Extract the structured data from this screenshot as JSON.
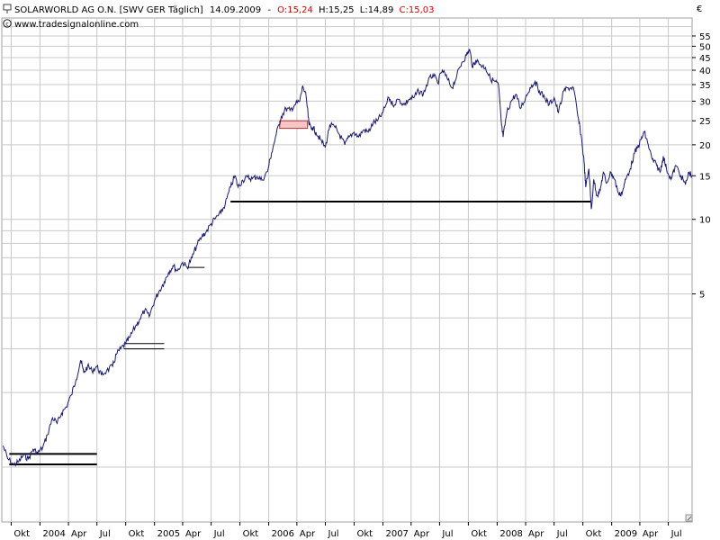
{
  "header": {
    "instrument": "SOLARWORLD AG O.N. [SWV GER  Täglich]",
    "date": "14.09.2009",
    "open_label": "O:15,24",
    "high_label": "H:15,25",
    "low_label": "L:14,89",
    "close_label": "C:15,03",
    "source": "www.tradesignalonline.com",
    "currency": "€"
  },
  "colors": {
    "price_line": "#1a1a6e",
    "grid": "#c8c8c8",
    "accent_red": "#d00000",
    "annotation": "#000000",
    "box_fill": "#f5c6c6",
    "box_stroke": "#b03030"
  },
  "chart_data": {
    "type": "line",
    "title": "SOLARWORLD AG O.N. [SWV GER  Täglich]",
    "xlabel": "",
    "ylabel": "€",
    "y_scale": "log",
    "grid": true,
    "ylim": [
      0.6,
      65
    ],
    "y_tick_labels": [
      "55",
      "50",
      "45",
      "40",
      "35",
      "30",
      "25",
      "20",
      "15",
      "10",
      "5"
    ],
    "y_ticks": [
      55,
      50,
      45,
      40,
      35,
      30,
      25,
      20,
      15,
      10,
      5
    ],
    "x_range": [
      "2003-09-01",
      "2009-09-15"
    ],
    "x_ticks": [
      {
        "label": "Okt",
        "date": "2003-10-01"
      },
      {
        "label": "2004",
        "date": "2004-01-01"
      },
      {
        "label": "Apr",
        "date": "2004-04-01"
      },
      {
        "label": "Jul",
        "date": "2004-07-01"
      },
      {
        "label": "Okt",
        "date": "2004-10-01"
      },
      {
        "label": "2005",
        "date": "2005-01-01"
      },
      {
        "label": "Apr",
        "date": "2005-04-01"
      },
      {
        "label": "Jul",
        "date": "2005-07-01"
      },
      {
        "label": "Okt",
        "date": "2005-10-01"
      },
      {
        "label": "2006",
        "date": "2006-01-01"
      },
      {
        "label": "Apr",
        "date": "2006-04-01"
      },
      {
        "label": "Jul",
        "date": "2006-07-01"
      },
      {
        "label": "Okt",
        "date": "2006-10-01"
      },
      {
        "label": "2007",
        "date": "2007-01-01"
      },
      {
        "label": "Apr",
        "date": "2007-04-01"
      },
      {
        "label": "Jul",
        "date": "2007-07-01"
      },
      {
        "label": "Okt",
        "date": "2007-10-01"
      },
      {
        "label": "2008",
        "date": "2008-01-01"
      },
      {
        "label": "Apr",
        "date": "2008-04-01"
      },
      {
        "label": "Jul",
        "date": "2008-07-01"
      },
      {
        "label": "Okt",
        "date": "2008-10-01"
      },
      {
        "label": "2009",
        "date": "2009-01-01"
      },
      {
        "label": "Apr",
        "date": "2009-04-01"
      },
      {
        "label": "Jul",
        "date": "2009-07-01"
      }
    ],
    "series": [
      {
        "points": [
          [
            "2003-09-05",
            1.22
          ],
          [
            "2003-09-20",
            1.08
          ],
          [
            "2003-10-10",
            1.02
          ],
          [
            "2003-10-25",
            1.05
          ],
          [
            "2003-11-10",
            1.12
          ],
          [
            "2003-11-25",
            1.08
          ],
          [
            "2003-12-10",
            1.18
          ],
          [
            "2003-12-25",
            1.14
          ],
          [
            "2004-01-10",
            1.2
          ],
          [
            "2004-01-25",
            1.35
          ],
          [
            "2004-02-10",
            1.58
          ],
          [
            "2004-02-25",
            1.5
          ],
          [
            "2004-03-10",
            1.65
          ],
          [
            "2004-03-25",
            1.75
          ],
          [
            "2004-04-10",
            1.95
          ],
          [
            "2004-04-25",
            2.25
          ],
          [
            "2004-05-10",
            2.7
          ],
          [
            "2004-05-20",
            2.4
          ],
          [
            "2004-06-01",
            2.55
          ],
          [
            "2004-06-15",
            2.45
          ],
          [
            "2004-07-01",
            2.55
          ],
          [
            "2004-07-15",
            2.35
          ],
          [
            "2004-08-01",
            2.45
          ],
          [
            "2004-08-20",
            2.55
          ],
          [
            "2004-09-01",
            2.85
          ],
          [
            "2004-09-15",
            3.0
          ],
          [
            "2004-10-01",
            3.15
          ],
          [
            "2004-10-15",
            3.35
          ],
          [
            "2004-11-01",
            3.7
          ],
          [
            "2004-11-15",
            3.95
          ],
          [
            "2004-12-01",
            4.3
          ],
          [
            "2004-12-15",
            4.05
          ],
          [
            "2005-01-01",
            4.7
          ],
          [
            "2005-01-15",
            5.1
          ],
          [
            "2005-02-01",
            5.6
          ],
          [
            "2005-02-15",
            6.1
          ],
          [
            "2005-03-01",
            6.5
          ],
          [
            "2005-03-15",
            6.2
          ],
          [
            "2005-04-01",
            6.7
          ],
          [
            "2005-04-15",
            6.4
          ],
          [
            "2005-05-01",
            7.0
          ],
          [
            "2005-05-15",
            7.8
          ],
          [
            "2005-06-01",
            8.5
          ],
          [
            "2005-06-15",
            8.9
          ],
          [
            "2005-07-01",
            9.6
          ],
          [
            "2005-07-15",
            10.1
          ],
          [
            "2005-08-01",
            10.6
          ],
          [
            "2005-08-15",
            11.5
          ],
          [
            "2005-09-01",
            13.5
          ],
          [
            "2005-09-15",
            15.0
          ],
          [
            "2005-09-25",
            13.5
          ],
          [
            "2005-10-10",
            14.4
          ],
          [
            "2005-10-25",
            14.8
          ],
          [
            "2005-11-10",
            14.6
          ],
          [
            "2005-11-25",
            14.9
          ],
          [
            "2005-12-10",
            14.4
          ],
          [
            "2005-12-28",
            15.6
          ],
          [
            "2006-01-10",
            18.5
          ],
          [
            "2006-01-25",
            22.0
          ],
          [
            "2006-02-10",
            26.0
          ],
          [
            "2006-02-25",
            28.0
          ],
          [
            "2006-03-10",
            27.5
          ],
          [
            "2006-03-25",
            29.0
          ],
          [
            "2006-04-10",
            30.0
          ],
          [
            "2006-04-20",
            34.5
          ],
          [
            "2006-05-01",
            31.0
          ],
          [
            "2006-05-10",
            24.0
          ],
          [
            "2006-05-20",
            23.5
          ],
          [
            "2006-06-01",
            22.5
          ],
          [
            "2006-06-15",
            21.0
          ],
          [
            "2006-07-01",
            19.5
          ],
          [
            "2006-07-15",
            24.0
          ],
          [
            "2006-08-01",
            23.5
          ],
          [
            "2006-08-15",
            22.0
          ],
          [
            "2006-09-01",
            20.0
          ],
          [
            "2006-09-15",
            21.5
          ],
          [
            "2006-10-01",
            22.5
          ],
          [
            "2006-10-15",
            21.5
          ],
          [
            "2006-11-01",
            23.0
          ],
          [
            "2006-11-15",
            22.5
          ],
          [
            "2006-12-01",
            24.5
          ],
          [
            "2006-12-15",
            25.0
          ],
          [
            "2007-01-01",
            27.0
          ],
          [
            "2007-01-20",
            31.0
          ],
          [
            "2007-02-01",
            29.0
          ],
          [
            "2007-02-20",
            30.5
          ],
          [
            "2007-03-10",
            29.0
          ],
          [
            "2007-03-25",
            30.5
          ],
          [
            "2007-04-10",
            31.0
          ],
          [
            "2007-04-25",
            33.0
          ],
          [
            "2007-05-10",
            32.0
          ],
          [
            "2007-05-25",
            36.0
          ],
          [
            "2007-06-10",
            38.5
          ],
          [
            "2007-06-25",
            35.5
          ],
          [
            "2007-07-10",
            40.0
          ],
          [
            "2007-07-25",
            37.0
          ],
          [
            "2007-08-10",
            34.0
          ],
          [
            "2007-08-25",
            38.0
          ],
          [
            "2007-09-10",
            43.0
          ],
          [
            "2007-09-25",
            46.0
          ],
          [
            "2007-10-05",
            48.5
          ],
          [
            "2007-10-15",
            41.0
          ],
          [
            "2007-10-25",
            44.0
          ],
          [
            "2007-11-10",
            42.0
          ],
          [
            "2007-11-25",
            41.0
          ],
          [
            "2007-12-10",
            37.0
          ],
          [
            "2007-12-25",
            36.0
          ],
          [
            "2008-01-05",
            35.0
          ],
          [
            "2008-01-15",
            24.0
          ],
          [
            "2008-01-20",
            21.5
          ],
          [
            "2008-02-01",
            27.0
          ],
          [
            "2008-02-15",
            30.0
          ],
          [
            "2008-03-01",
            32.0
          ],
          [
            "2008-03-15",
            28.0
          ],
          [
            "2008-04-01",
            31.0
          ],
          [
            "2008-04-15",
            34.0
          ],
          [
            "2008-05-01",
            36.0
          ],
          [
            "2008-05-15",
            33.0
          ],
          [
            "2008-06-01",
            31.0
          ],
          [
            "2008-06-15",
            29.0
          ],
          [
            "2008-07-01",
            31.0
          ],
          [
            "2008-07-15",
            27.0
          ],
          [
            "2008-08-01",
            33.0
          ],
          [
            "2008-08-15",
            34.0
          ],
          [
            "2008-09-01",
            34.0
          ],
          [
            "2008-09-15",
            26.0
          ],
          [
            "2008-09-25",
            22.0
          ],
          [
            "2008-10-05",
            17.0
          ],
          [
            "2008-10-10",
            13.5
          ],
          [
            "2008-10-20",
            16.0
          ],
          [
            "2008-10-28",
            11.0
          ],
          [
            "2008-11-05",
            14.5
          ],
          [
            "2008-11-15",
            12.5
          ],
          [
            "2008-11-25",
            13.0
          ],
          [
            "2008-12-05",
            15.5
          ],
          [
            "2008-12-15",
            14.0
          ],
          [
            "2008-12-30",
            15.5
          ],
          [
            "2009-01-10",
            14.5
          ],
          [
            "2009-01-25",
            12.5
          ],
          [
            "2009-02-05",
            13.0
          ],
          [
            "2009-02-15",
            14.5
          ],
          [
            "2009-03-01",
            16.0
          ],
          [
            "2009-03-15",
            18.5
          ],
          [
            "2009-03-25",
            19.5
          ],
          [
            "2009-04-05",
            21.0
          ],
          [
            "2009-04-15",
            22.5
          ],
          [
            "2009-04-28",
            20.0
          ],
          [
            "2009-05-10",
            17.5
          ],
          [
            "2009-05-25",
            16.5
          ],
          [
            "2009-06-05",
            15.5
          ],
          [
            "2009-06-15",
            18.0
          ],
          [
            "2009-06-25",
            16.0
          ],
          [
            "2009-07-10",
            14.5
          ],
          [
            "2009-07-25",
            16.5
          ],
          [
            "2009-08-10",
            15.0
          ],
          [
            "2009-08-25",
            13.8
          ],
          [
            "2009-09-05",
            15.5
          ],
          [
            "2009-09-14",
            15.03
          ]
        ]
      }
    ],
    "annotations": [
      {
        "type": "hline",
        "y": 1.13,
        "x_start": "2003-09-25",
        "x_end": "2004-07-01",
        "weight": "bold"
      },
      {
        "type": "hline",
        "y": 1.025,
        "x_start": "2003-09-25",
        "x_end": "2004-07-01",
        "weight": "bold"
      },
      {
        "type": "hline",
        "y": 3.15,
        "x_start": "2004-09-25",
        "x_end": "2005-02-01",
        "weight": "thin"
      },
      {
        "type": "hline",
        "y": 3.0,
        "x_start": "2004-09-25",
        "x_end": "2005-02-01",
        "weight": "thin"
      },
      {
        "type": "hline",
        "y": 6.4,
        "x_start": "2005-04-15",
        "x_end": "2005-06-10",
        "weight": "thin"
      },
      {
        "type": "hline",
        "y": 11.8,
        "x_start": "2005-09-01",
        "x_end": "2008-10-25",
        "weight": "bold"
      },
      {
        "type": "box",
        "y_low": 23.3,
        "y_high": 25.0,
        "x_start": "2006-02-05",
        "x_end": "2006-05-05"
      }
    ]
  }
}
